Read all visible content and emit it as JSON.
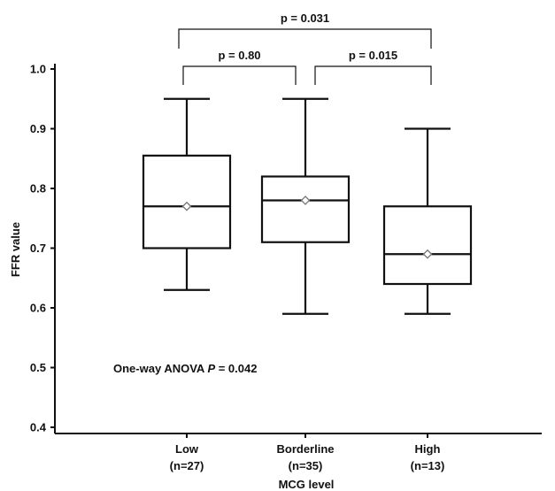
{
  "chart_data": {
    "type": "boxplot",
    "xlabel": "MCG level",
    "ylabel": "FFR value",
    "ylim": [
      0.4,
      1.0
    ],
    "yticks": [
      "0.4",
      "0.5",
      "0.6",
      "0.7",
      "0.8",
      "0.9",
      "1.0"
    ],
    "categories": [
      {
        "name": "Low",
        "n": "(n=27)"
      },
      {
        "name": "Borderline",
        "n": "(n=35)"
      },
      {
        "name": "High",
        "n": "(n=13)"
      }
    ],
    "boxes": [
      {
        "category": "Low",
        "min": 0.63,
        "q1": 0.7,
        "median": 0.77,
        "q3": 0.855,
        "max": 0.95,
        "mean": 0.77
      },
      {
        "category": "Borderline",
        "min": 0.59,
        "q1": 0.71,
        "median": 0.78,
        "q3": 0.82,
        "max": 0.95,
        "mean": 0.78
      },
      {
        "category": "High",
        "min": 0.59,
        "q1": 0.64,
        "median": 0.69,
        "q3": 0.77,
        "max": 0.9,
        "mean": 0.69
      }
    ],
    "comparisons": [
      {
        "from": "Low",
        "to": "High",
        "label": "p = 0.031"
      },
      {
        "from": "Low",
        "to": "Borderline",
        "label": "p = 0.80"
      },
      {
        "from": "Borderline",
        "to": "High",
        "label": "p = 0.015"
      }
    ],
    "annotation": {
      "prefix": "One-way ANOVA ",
      "italic": "P",
      "suffix": " = 0.042"
    },
    "grid": false
  }
}
